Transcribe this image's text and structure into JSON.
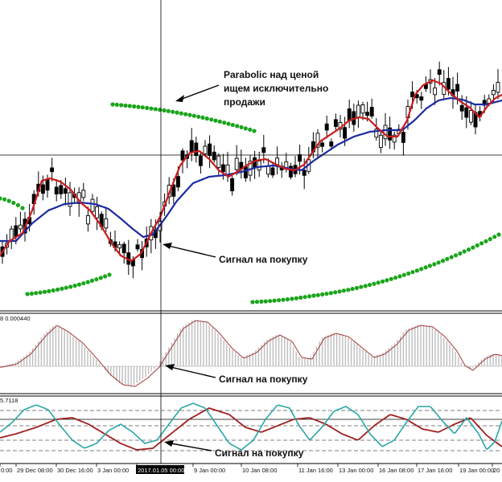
{
  "annotations": {
    "parabolic_line1": "Parabolic над ценой",
    "parabolic_line2": "ищем исключительно",
    "parabolic_line3": "продажи",
    "signal_main": "Сигнал на покупку",
    "signal_macd": "Сигнал на покупку",
    "signal_stoch": "Сигнал на покупку"
  },
  "indicators": {
    "macd_label": "8 0.000440",
    "stoch_label": "5.7118"
  },
  "x_axis": {
    "labels": [
      "0:00",
      "29 Dec 08:00",
      "30 Dec 16:00",
      "3 Jan 00:00",
      "2017.01.05 00:00",
      "9 Jan 00:00",
      "10 Jan 08:00",
      "11 Jan 16:00",
      "13 Jan 00:00",
      "16 Jan 08:00",
      "17 Jan 16:00",
      "19 Jan 00:00",
      "20"
    ],
    "highlighted": "2017.01.05 00:00"
  },
  "colors": {
    "ma_fast": "#cc1b1b",
    "ma_slow": "#1c2aa0",
    "parabolic": "#1aa51a",
    "macd_hist": "#bdbdbd",
    "macd_signal": "#a33838",
    "stoch_main": "#2aa6a6",
    "stoch_signal": "#a11f1f",
    "candle": "#000000",
    "crosshair": "#000000"
  }
}
